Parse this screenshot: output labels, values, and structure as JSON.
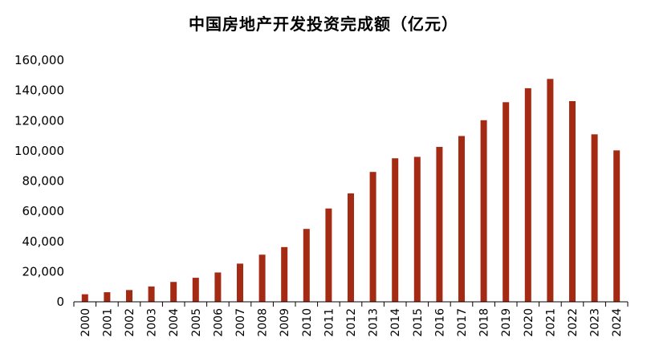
{
  "chart_data": {
    "type": "bar",
    "title": "中国房地产开发投资完成额（亿元）",
    "xlabel": "",
    "ylabel": "",
    "ylim": [
      0,
      160000
    ],
    "yticks": [
      0,
      20000,
      40000,
      60000,
      80000,
      100000,
      120000,
      140000,
      160000
    ],
    "ytick_labels": [
      "0",
      "20,000",
      "40,000",
      "60,000",
      "80,000",
      "100,000",
      "120,000",
      "140,000",
      "160,000"
    ],
    "categories": [
      "2000",
      "2001",
      "2002",
      "2003",
      "2004",
      "2005",
      "2006",
      "2007",
      "2008",
      "2009",
      "2010",
      "2011",
      "2012",
      "2013",
      "2014",
      "2015",
      "2016",
      "2017",
      "2018",
      "2019",
      "2020",
      "2021",
      "2022",
      "2023",
      "2024"
    ],
    "values": [
      4984,
      6344,
      7791,
      10154,
      13158,
      15909,
      19423,
      25289,
      31203,
      36242,
      48259,
      61797,
      71804,
      86013,
      95036,
      95979,
      102581,
      109799,
      120264,
      132194,
      141443,
      147602,
      132895,
      110913,
      100280
    ],
    "bar_color": "#A52A14",
    "grid": false,
    "legend": "none"
  }
}
